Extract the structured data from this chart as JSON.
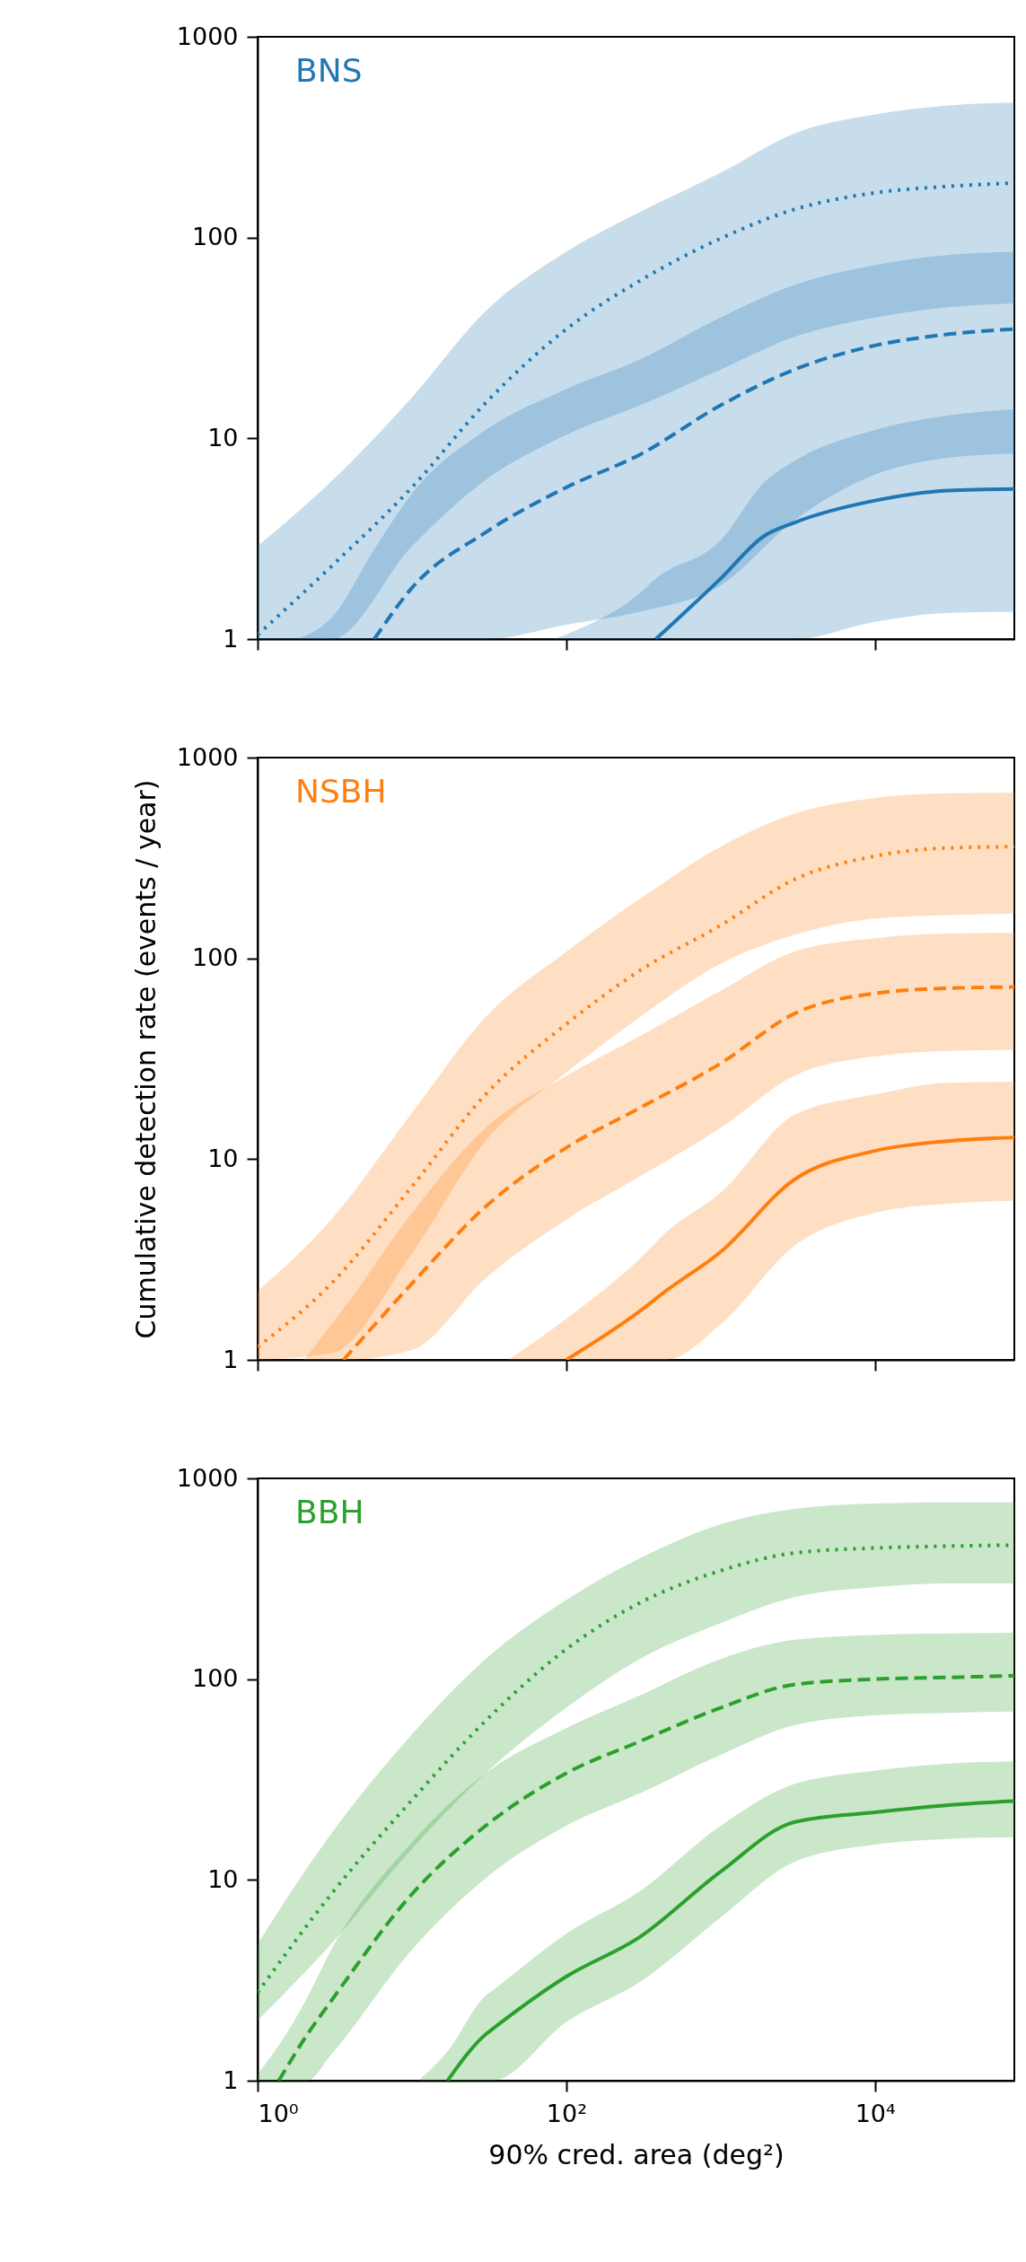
{
  "chart_data": [
    {
      "type": "line",
      "title": "BNS",
      "log": "xy",
      "tick_labels": "y",
      "xlim": [
        1,
        80000
      ],
      "ylim": [
        1,
        1000
      ],
      "xticks": [
        {
          "value": 1,
          "label": null
        },
        {
          "value": 100,
          "label": null
        },
        {
          "value": 10000,
          "label": null
        }
      ],
      "yticks": [
        1,
        10,
        100,
        1000
      ],
      "series": [
        {
          "color": "#1f77b4",
          "line_style": "solid",
          "x": [
            83,
            300,
            380,
            1000,
            1900,
            3000,
            10000,
            30000,
            80000
          ],
          "values": [
            null,
            null,
            1,
            2.0,
            3.25,
            3.8,
            4.9,
            5.5,
            5.6
          ],
          "upper": [
            1,
            1.7,
            2.0,
            3.1,
            6,
            7.7,
            11,
            13,
            14
          ],
          "lower": [
            1,
            1,
            1,
            1,
            1,
            1,
            1.22,
            1.35,
            1.37
          ]
        },
        {
          "color": "#1f77b4",
          "line_style": "dashed",
          "x": [
            1.8,
            3,
            5.7,
            10,
            30,
            100,
            300,
            1000,
            3000,
            10000,
            30000,
            80000
          ],
          "values": [
            null,
            null,
            1,
            1.8,
            3.4,
            5.7,
            8.3,
            14.6,
            22,
            29,
            33,
            35
          ],
          "upper": [
            1,
            1.27,
            2.8,
            5.3,
            11,
            17.6,
            24.7,
            40,
            58,
            73,
            82,
            85
          ],
          "lower": [
            1,
            1,
            1,
            1,
            1,
            1.18,
            1.37,
            1.85,
            3.9,
            6.6,
            8,
            8.4
          ]
        },
        {
          "color": "#1f77b4",
          "line_style": "dotted",
          "x": [
            1,
            3,
            10,
            30,
            100,
            300,
            1000,
            3000,
            10000,
            30000,
            80000
          ],
          "values": [
            1.05,
            2.3,
            5.7,
            15,
            35,
            61,
            99,
            138,
            167,
            180,
            187
          ],
          "upper": [
            2.9,
            6.1,
            16,
            43,
            85,
            134,
            210,
            330,
            410,
            455,
            470
          ],
          "lower": [
            1,
            1,
            2.9,
            6.2,
            10.4,
            14.6,
            22,
            32,
            40,
            45,
            47
          ]
        }
      ]
    },
    {
      "type": "line",
      "title": "NSBH",
      "ylabel": "Cumulative detection rate (events / year)",
      "log": "xy",
      "tick_labels": "y",
      "xlim": [
        1,
        80000
      ],
      "ylim": [
        1,
        1000
      ],
      "xticks": [
        {
          "value": 1,
          "label": null
        },
        {
          "value": 100,
          "label": null
        },
        {
          "value": 10000,
          "label": null
        }
      ],
      "yticks": [
        1,
        10,
        100,
        1000
      ],
      "series": [
        {
          "color": "#ff7f0e",
          "line_style": "solid",
          "x": [
            42,
            100,
            300,
            440,
            1000,
            3000,
            10000,
            30000,
            80000
          ],
          "values": [
            null,
            1,
            1.75,
            2.2,
            3.45,
            7.9,
            11,
            12.3,
            12.8
          ],
          "upper": [
            1,
            1.6,
            3.2,
            4.3,
            6.8,
            16.6,
            21,
            24,
            24.3
          ],
          "lower": [
            1,
            1,
            1,
            1,
            1.5,
            3.7,
            5.4,
            6.0,
            6.2
          ]
        },
        {
          "color": "#ff7f0e",
          "line_style": "dashed",
          "x": [
            2,
            3,
            3.6,
            10,
            30,
            100,
            300,
            1000,
            3000,
            10000,
            30000,
            80000
          ],
          "values": [
            null,
            null,
            1,
            2.4,
            5.8,
            11.4,
            18,
            30,
            53,
            67,
            71,
            72
          ],
          "upper": [
            1,
            1.5,
            1.8,
            5.4,
            14.3,
            26,
            41,
            69,
            108,
            126,
            133,
            134
          ],
          "lower": [
            1,
            1,
            1,
            1.12,
            2.55,
            5,
            8.2,
            14.3,
            26,
            32.5,
            34.6,
            35
          ]
        },
        {
          "color": "#ff7f0e",
          "line_style": "dotted",
          "x": [
            1,
            3,
            10,
            30,
            100,
            300,
            1000,
            3000,
            10000,
            30000,
            80000
          ],
          "values": [
            1.16,
            2.4,
            7.3,
            21,
            47,
            87,
            146,
            247,
            323,
            355,
            360
          ],
          "upper": [
            2.2,
            5,
            17,
            51,
            108,
            198,
            360,
            525,
            630,
            665,
            670
          ],
          "lower": [
            1,
            1.08,
            3.4,
            12.3,
            27,
            51,
            94,
            131,
            158,
            164,
            167
          ]
        }
      ]
    },
    {
      "type": "line",
      "title": "BBH",
      "xlabel": "90% cred. area (deg²)",
      "log": "xy",
      "xlim": [
        1,
        80000
      ],
      "ylim": [
        1,
        1000
      ],
      "xticks": [
        {
          "value": 1,
          "label": "10⁰"
        },
        {
          "value": 100,
          "label": "10²"
        },
        {
          "value": 10000,
          "label": "10⁴"
        }
      ],
      "yticks": [
        1,
        10,
        100,
        1000
      ],
      "series": [
        {
          "color": "#2ca02c",
          "line_style": "solid",
          "x": [
            11,
            17,
            30,
            33,
            100,
            300,
            1000,
            3000,
            10000,
            30000,
            80000
          ],
          "values": [
            null,
            1,
            1.7,
            1.8,
            3.3,
            5.2,
            11,
            19.4,
            21.7,
            23.6,
            24.7
          ],
          "upper": [
            1,
            1.4,
            2.65,
            2.8,
            5.4,
            8.8,
            18.6,
            30,
            35,
            38,
            39
          ],
          "lower": [
            1,
            1,
            1,
            1,
            1.96,
            3.1,
            6.5,
            12.3,
            15,
            16,
            16.3
          ]
        },
        {
          "color": "#2ca02c",
          "line_style": "dashed",
          "x": [
            1,
            1.37,
            2.1,
            3,
            10,
            30,
            100,
            300,
            1000,
            3000,
            10000,
            30000,
            80000
          ],
          "values": [
            null,
            1,
            1.7,
            2.5,
            8.5,
            18.6,
            34,
            49,
            72,
            94,
            100,
            102,
            104
          ],
          "upper": [
            1.08,
            1.5,
            2.6,
            4.5,
            15.4,
            34,
            57,
            83,
            126,
            157,
            166,
            169,
            170
          ],
          "lower": [
            1,
            1,
            1,
            1.35,
            4.5,
            10.2,
            18.6,
            27,
            42,
            59,
            66,
            68,
            69
          ]
        },
        {
          "color": "#2ca02c",
          "line_style": "dotted",
          "x": [
            1,
            3,
            10,
            30,
            100,
            300,
            1000,
            3000,
            10000,
            30000,
            80000
          ],
          "values": [
            2.75,
            8.5,
            25,
            62,
            141,
            240,
            347,
            425,
            450,
            460,
            465
          ],
          "upper": [
            4.8,
            17,
            53,
            126,
            248,
            400,
            590,
            705,
            750,
            760,
            760
          ],
          "lower": [
            2.0,
            4.8,
            14.3,
            34,
            72,
            126,
            190,
            256,
            287,
            300,
            300
          ]
        }
      ]
    }
  ]
}
